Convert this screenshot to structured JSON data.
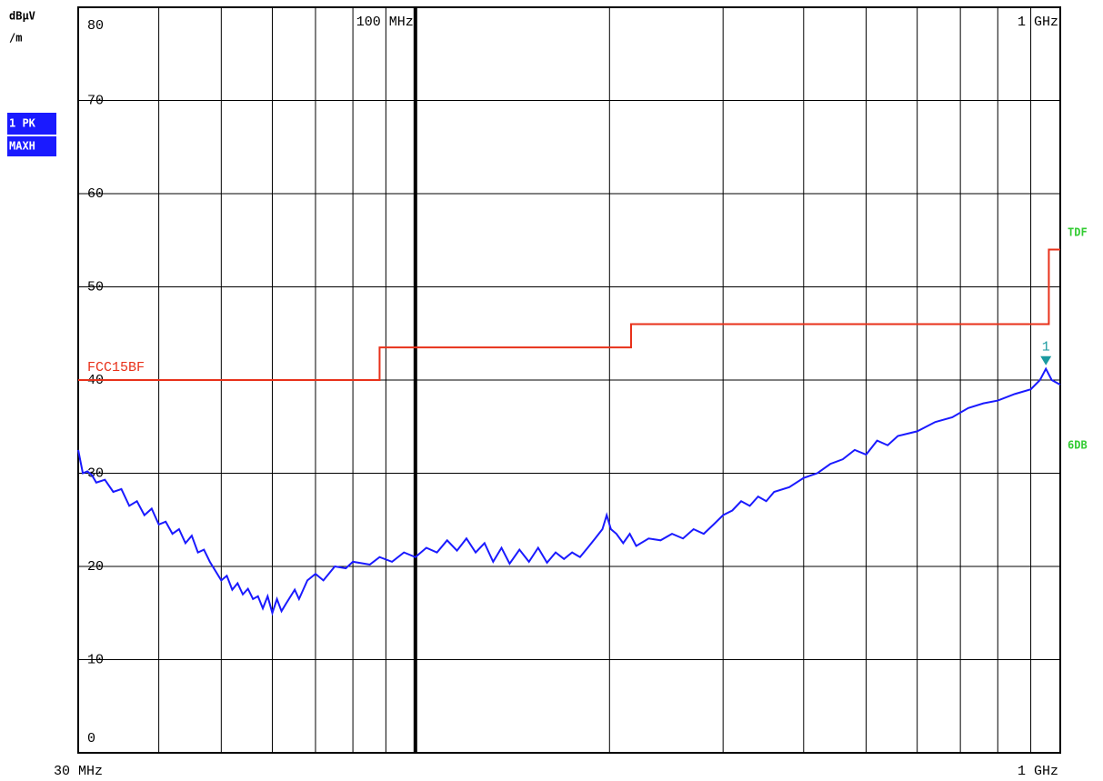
{
  "chart_data": {
    "type": "line",
    "ylabel": [
      "dBµV",
      "/m"
    ],
    "trace_labels": [
      "1 PK",
      "MAXH"
    ],
    "side_labels": [
      "TDF",
      "6DB"
    ],
    "xscale": "log",
    "xlim": [
      30,
      1000
    ],
    "xlim_labels": [
      "30 MHz",
      "1 GHz"
    ],
    "xticks": [
      {
        "value": 100,
        "label": "100 MHz"
      },
      {
        "value": 1000,
        "label": "1 GHz"
      }
    ],
    "xgrid": [
      40,
      50,
      60,
      70,
      80,
      90,
      200,
      300,
      400,
      500,
      600,
      700,
      800,
      900
    ],
    "ylim": [
      0,
      80
    ],
    "yticks": [
      0,
      10,
      20,
      30,
      40,
      50,
      60,
      70,
      80
    ],
    "grid": true,
    "series": [
      {
        "color": "#1a1aff",
        "x": [
          30,
          30.5,
          31,
          31.5,
          32,
          33,
          34,
          35,
          36,
          37,
          38,
          39,
          40,
          41,
          42,
          43,
          44,
          45,
          46,
          47,
          48,
          50,
          51,
          52,
          53,
          54,
          55,
          56,
          57,
          58,
          59,
          60,
          61,
          62,
          63,
          65,
          66,
          68,
          70,
          72,
          75,
          78,
          80,
          85,
          88,
          92,
          96,
          100,
          104,
          108,
          112,
          116,
          120,
          124,
          128,
          132,
          136,
          140,
          145,
          150,
          155,
          160,
          165,
          170,
          175,
          180,
          185,
          190,
          195,
          198,
          201,
          205,
          210,
          215,
          220,
          230,
          240,
          250,
          260,
          270,
          280,
          290,
          300,
          310,
          320,
          330,
          340,
          350,
          360,
          380,
          400,
          420,
          440,
          460,
          480,
          500,
          520,
          540,
          560,
          600,
          640,
          680,
          720,
          760,
          800,
          850,
          900,
          930,
          950,
          970,
          1000
        ],
        "values": [
          32.5,
          30,
          30.2,
          29.8,
          29,
          29.3,
          28,
          28.3,
          26.5,
          27,
          25.5,
          26.2,
          24.5,
          24.8,
          23.5,
          24,
          22.5,
          23.3,
          21.5,
          21.8,
          20.5,
          18.5,
          19,
          17.5,
          18.2,
          17,
          17.6,
          16.5,
          16.8,
          15.5,
          16.8,
          15,
          16.5,
          15.2,
          16,
          17.5,
          16.5,
          18.5,
          19.2,
          18.5,
          20,
          19.8,
          20.5,
          20.2,
          21,
          20.5,
          21.5,
          21,
          22,
          21.5,
          22.8,
          21.7,
          23,
          21.5,
          22.5,
          20.5,
          22,
          20.3,
          21.8,
          20.5,
          22,
          20.4,
          21.5,
          20.8,
          21.5,
          21,
          22,
          23,
          24,
          25.5,
          24,
          23.5,
          22.5,
          23.5,
          22.2,
          23,
          22.8,
          23.5,
          23,
          24,
          23.5,
          24.5,
          25.5,
          26,
          27,
          26.5,
          27.5,
          27,
          28,
          28.5,
          29.5,
          30,
          31,
          31.5,
          32.5,
          32,
          33.5,
          33,
          34,
          34.5,
          35.5,
          36,
          37,
          37.5,
          37.8,
          38.5,
          39,
          40,
          41.2,
          40,
          39.5
        ]
      },
      {
        "name": "FCC15BF",
        "color": "#e8311a",
        "step": true,
        "x": [
          30,
          88,
          216,
          960,
          1000
        ],
        "values": [
          40,
          43.5,
          46,
          54,
          54
        ]
      }
    ],
    "marker": {
      "label": "1",
      "x": 950,
      "value": 41.2,
      "color": "#1a9aa0"
    }
  }
}
